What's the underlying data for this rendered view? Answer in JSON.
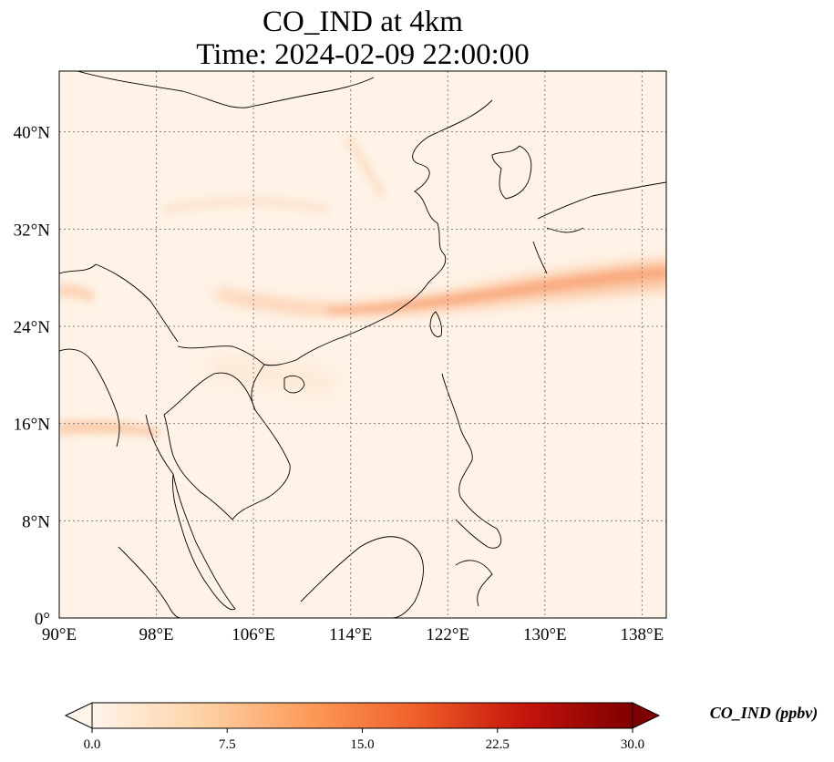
{
  "title_line1": "CO_IND at 4km",
  "title_line2": "Time: 2024-02-09 22:00:00",
  "map": {
    "lon_range": [
      90,
      140
    ],
    "lat_range": [
      0,
      45
    ],
    "lon_ticks": [
      {
        "value": 90,
        "label": "90°E"
      },
      {
        "value": 98,
        "label": "98°E"
      },
      {
        "value": 106,
        "label": "106°E"
      },
      {
        "value": 114,
        "label": "114°E"
      },
      {
        "value": 122,
        "label": "122°E"
      },
      {
        "value": 130,
        "label": "130°E"
      },
      {
        "value": 138,
        "label": "138°E"
      }
    ],
    "lat_ticks": [
      {
        "value": 0,
        "label": "0°"
      },
      {
        "value": 8,
        "label": "8°N"
      },
      {
        "value": 16,
        "label": "16°N"
      },
      {
        "value": 24,
        "label": "24°N"
      },
      {
        "value": 32,
        "label": "32°N"
      },
      {
        "value": 40,
        "label": "40°N"
      }
    ],
    "gridlines": "dotted",
    "background_color": "#fef3e6"
  },
  "colorbar": {
    "label": "CO_IND (ppbv)",
    "min": 0,
    "max": 30,
    "extend": "both",
    "ticks": [
      "0.0",
      "7.5",
      "15.0",
      "22.5",
      "30.0"
    ],
    "colormap": [
      "#fff5eb",
      "#fdd3a7",
      "#fd9b5a",
      "#ef5f2a",
      "#c4140b",
      "#7f0000"
    ]
  }
}
